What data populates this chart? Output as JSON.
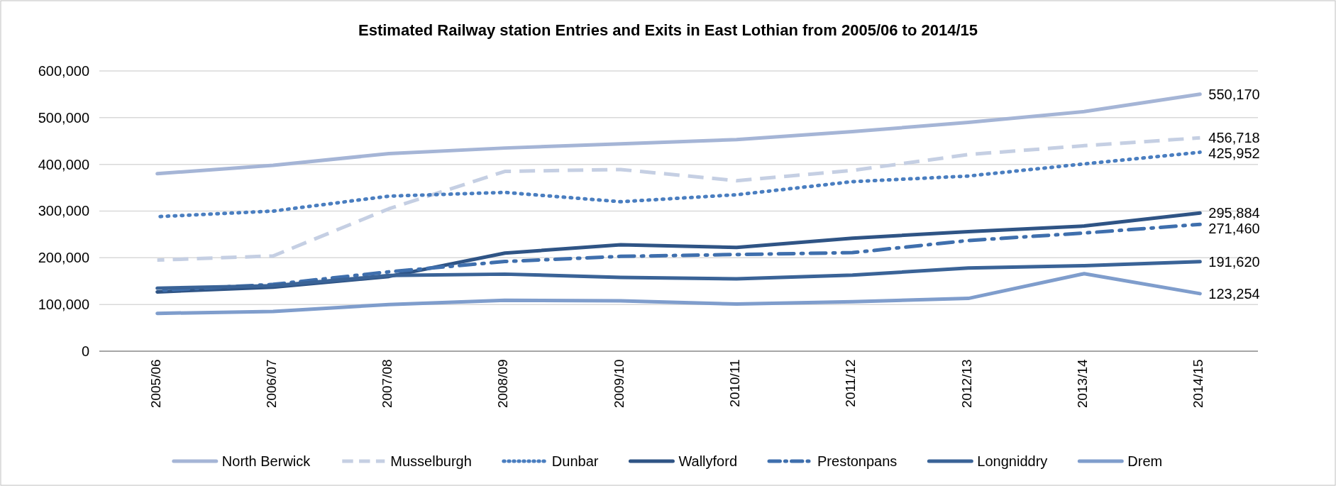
{
  "chart_data": {
    "type": "line",
    "title": "Estimated Railway station Entries and Exits in East Lothian from 2005/06 to 2014/15",
    "categories": [
      "2005/06",
      "2006/07",
      "2007/08",
      "2008/09",
      "2009/10",
      "2010/11",
      "2011/12",
      "2012/13",
      "2013/14",
      "2014/15"
    ],
    "series": [
      {
        "name": "North Berwick",
        "color": "#a5b5d6",
        "line_style": "solid",
        "values": [
          380000,
          398000,
          423000,
          435000,
          444000,
          453000,
          470000,
          490000,
          513000,
          550170
        ],
        "value_labels": [
          null,
          null,
          null,
          null,
          null,
          null,
          null,
          null,
          null,
          "550,170"
        ]
      },
      {
        "name": "Musselburgh",
        "color": "#c5cfe3",
        "line_style": "dashed",
        "values": [
          195000,
          204000,
          305000,
          385000,
          389000,
          365000,
          387000,
          421000,
          440000,
          456718
        ],
        "value_labels": [
          null,
          null,
          null,
          null,
          null,
          null,
          null,
          null,
          null,
          "456,718"
        ]
      },
      {
        "name": "Dunbar",
        "color": "#4a7ec0",
        "line_style": "dotted",
        "values": [
          288000,
          300000,
          332000,
          340000,
          320000,
          335000,
          363000,
          375000,
          401000,
          425952
        ],
        "value_labels": [
          null,
          null,
          null,
          null,
          null,
          null,
          null,
          null,
          null,
          "425,952"
        ]
      },
      {
        "name": "Wallyford",
        "color": "#2f5485",
        "line_style": "solid",
        "values": [
          127000,
          137000,
          160000,
          210000,
          228000,
          222000,
          242000,
          256000,
          268000,
          295884
        ],
        "value_labels": [
          null,
          null,
          null,
          null,
          null,
          null,
          null,
          null,
          null,
          "295,884"
        ]
      },
      {
        "name": "Prestonpans",
        "color": "#3f6fad",
        "line_style": "dashdot",
        "values": [
          130000,
          143000,
          170000,
          192000,
          203000,
          207000,
          211000,
          237000,
          253000,
          271460
        ],
        "value_labels": [
          null,
          null,
          null,
          null,
          null,
          null,
          null,
          null,
          null,
          "271,460"
        ]
      },
      {
        "name": "Longniddry",
        "color": "#3a6397",
        "line_style": "solid",
        "values": [
          135000,
          140000,
          162000,
          165000,
          158000,
          155000,
          163000,
          178000,
          183000,
          191620
        ],
        "value_labels": [
          null,
          null,
          null,
          null,
          null,
          null,
          null,
          null,
          null,
          "191,620"
        ]
      },
      {
        "name": "Drem",
        "color": "#7f9dcc",
        "line_style": "solid",
        "values": [
          81000,
          85000,
          100000,
          109000,
          108000,
          101000,
          106000,
          113000,
          166000,
          123254
        ],
        "value_labels": [
          null,
          null,
          null,
          null,
          null,
          null,
          null,
          null,
          null,
          "123,254"
        ]
      }
    ],
    "ylim": [
      0,
      600000
    ],
    "yticks": [
      {
        "value": 0,
        "label": "0"
      },
      {
        "value": 100000,
        "label": "100,000"
      },
      {
        "value": 200000,
        "label": "200,000"
      },
      {
        "value": 300000,
        "label": "300,000"
      },
      {
        "value": 400000,
        "label": "400,000"
      },
      {
        "value": 500000,
        "label": "500,000"
      },
      {
        "value": 600000,
        "label": "600,000"
      }
    ],
    "grid": "y",
    "legend": "bottom",
    "marker": "none"
  }
}
